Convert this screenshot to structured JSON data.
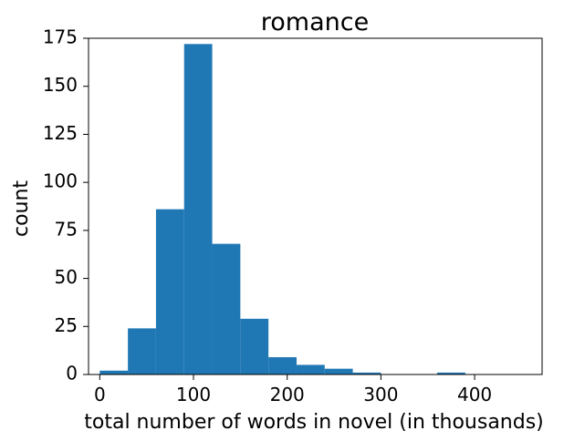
{
  "chart_data": {
    "type": "bar",
    "title": "romance",
    "xlabel": "total number of words in novel (in thousands)",
    "ylabel": "count",
    "bin_edges": [
      0,
      30,
      60,
      90,
      120,
      150,
      180,
      210,
      240,
      270,
      300,
      330,
      360,
      390,
      420,
      450
    ],
    "values": [
      2,
      24,
      86,
      172,
      68,
      29,
      9,
      5,
      3,
      1,
      0,
      0,
      1,
      0,
      0
    ],
    "xlim": [
      -12,
      472
    ],
    "ylim": [
      0,
      175
    ],
    "x_ticks": [
      0,
      100,
      200,
      300,
      400
    ],
    "x_tick_labels": [
      "0",
      "100",
      "200",
      "300",
      "400"
    ],
    "y_ticks": [
      0,
      25,
      50,
      75,
      100,
      125,
      150,
      175
    ],
    "y_tick_labels": [
      "0",
      "25",
      "50",
      "75",
      "100",
      "125",
      "150",
      "175"
    ],
    "bar_color": "#1f77b4",
    "grid": false,
    "legend": "none"
  }
}
